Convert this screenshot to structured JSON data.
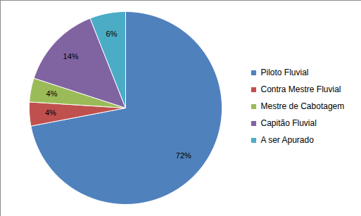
{
  "chart_data": {
    "type": "pie",
    "categories": [
      "Piloto Fluvial",
      "Contra Mestre Fluvial",
      "Mestre de Cabotagem",
      "Capitão Fluvial",
      "A ser Apurado"
    ],
    "values": [
      72,
      4,
      4,
      14,
      6
    ],
    "value_labels": [
      "72%",
      "4%",
      "4%",
      "14%",
      "6%"
    ],
    "colors": [
      "#4f81bd",
      "#c0504d",
      "#9bbb59",
      "#8064a2",
      "#4bacc6"
    ],
    "data_labels": true,
    "legend": "right"
  }
}
